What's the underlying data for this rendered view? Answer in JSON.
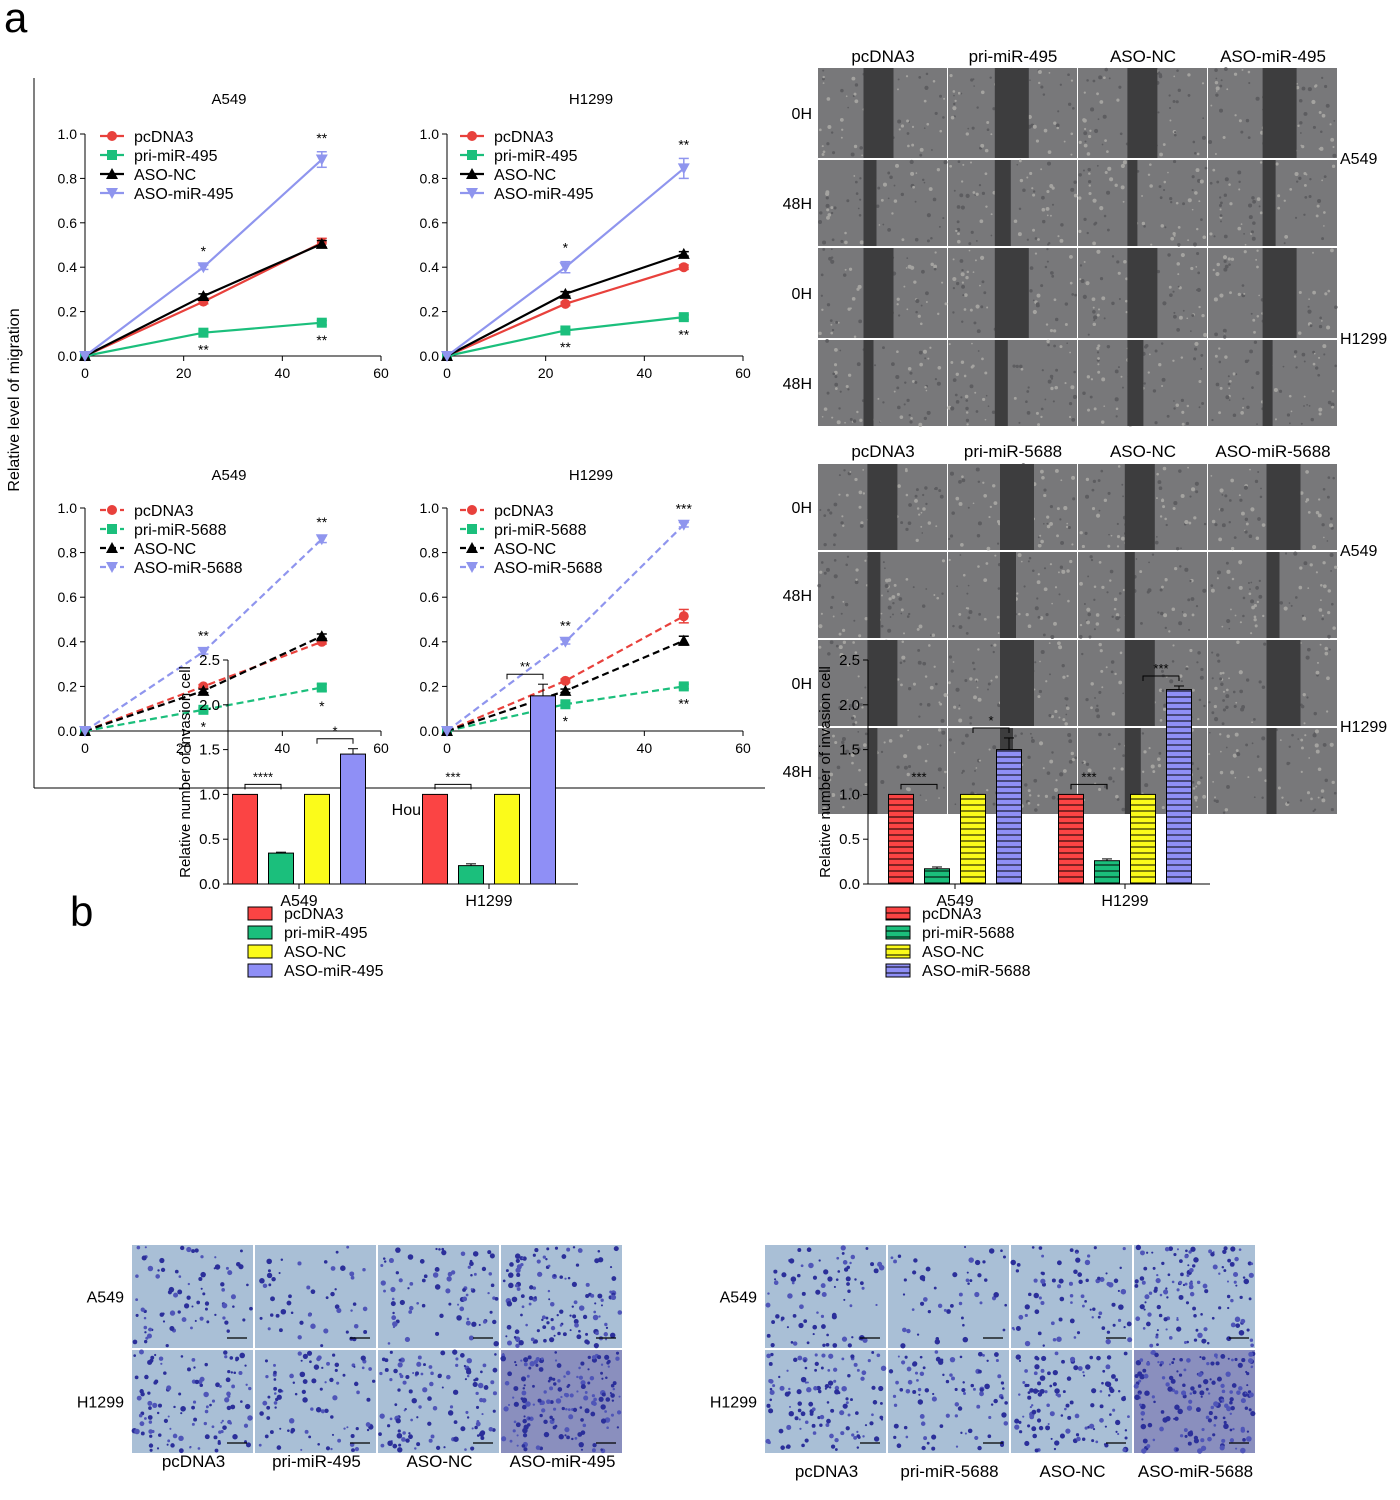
{
  "panels": {
    "a": "a",
    "b": "b"
  },
  "migration": {
    "ylabel": "Relative level of migration",
    "xlabel": "Hour",
    "colors": {
      "pcDNA3": "#e8413c",
      "pri": "#1bbf7c",
      "ASO-NC": "#000000",
      "ASO": "#8f95ee"
    }
  },
  "chart_data": [
    {
      "type": "line",
      "title": "A549",
      "xlim": [
        0,
        60
      ],
      "ylim": [
        0,
        1.0
      ],
      "xticks": [
        "0",
        "20",
        "40",
        "60"
      ],
      "yticks": [
        "0.0",
        "0.2",
        "0.4",
        "0.6",
        "0.8",
        "1.0"
      ],
      "x": [
        0,
        24,
        48
      ],
      "dashed": false,
      "series": [
        {
          "name": "pcDNA3",
          "values": [
            0,
            0.245,
            0.51
          ],
          "err": [
            0,
            0.01,
            0.02
          ],
          "marker": "circle",
          "color": "#e8413c",
          "stars": [
            "",
            "",
            ""
          ]
        },
        {
          "name": "pri-miR-495",
          "values": [
            0,
            0.105,
            0.15
          ],
          "err": [
            0,
            0.008,
            0.01
          ],
          "marker": "square",
          "color": "#1bbf7c",
          "stars": [
            "",
            "**",
            "**"
          ]
        },
        {
          "name": "ASO-NC",
          "values": [
            0,
            0.27,
            0.505
          ],
          "err": [
            0,
            0.01,
            0.015
          ],
          "marker": "triangle",
          "color": "#000000",
          "stars": [
            "",
            "",
            ""
          ]
        },
        {
          "name": "ASO-miR-495",
          "values": [
            0,
            0.4,
            0.885
          ],
          "err": [
            0,
            0.01,
            0.035
          ],
          "marker": "tridown",
          "color": "#8f95ee",
          "stars": [
            "",
            "*",
            "**"
          ]
        }
      ]
    },
    {
      "type": "line",
      "title": "H1299",
      "xlim": [
        0,
        60
      ],
      "ylim": [
        0,
        1.0
      ],
      "xticks": [
        "0",
        "20",
        "40",
        "60"
      ],
      "yticks": [
        "0.0",
        "0.2",
        "0.4",
        "0.6",
        "0.8",
        "1.0"
      ],
      "x": [
        0,
        24,
        48
      ],
      "dashed": false,
      "series": [
        {
          "name": "pcDNA3",
          "values": [
            0,
            0.235,
            0.4
          ],
          "err": [
            0,
            0.008,
            0.01
          ],
          "marker": "circle",
          "color": "#e8413c",
          "stars": [
            "",
            "",
            ""
          ]
        },
        {
          "name": "pri-miR-495",
          "values": [
            0,
            0.115,
            0.175
          ],
          "err": [
            0,
            0.008,
            0.01
          ],
          "marker": "square",
          "color": "#1bbf7c",
          "stars": [
            "",
            "**",
            "**"
          ]
        },
        {
          "name": "ASO-NC",
          "values": [
            0,
            0.28,
            0.46
          ],
          "err": [
            0,
            0.01,
            0.01
          ],
          "marker": "triangle",
          "color": "#000000",
          "stars": [
            "",
            "",
            ""
          ]
        },
        {
          "name": "ASO-miR-495",
          "values": [
            0,
            0.4,
            0.845
          ],
          "err": [
            0,
            0.025,
            0.045
          ],
          "marker": "tridown",
          "color": "#8f95ee",
          "stars": [
            "",
            "*",
            "**"
          ]
        }
      ]
    },
    {
      "type": "line",
      "title": "A549",
      "xlim": [
        0,
        60
      ],
      "ylim": [
        0,
        1.0
      ],
      "xticks": [
        "0",
        "20",
        "40",
        "60"
      ],
      "yticks": [
        "0.0",
        "0.2",
        "0.4",
        "0.6",
        "0.8",
        "1.0"
      ],
      "x": [
        0,
        24,
        48
      ],
      "dashed": true,
      "series": [
        {
          "name": "pcDNA3",
          "values": [
            0,
            0.2,
            0.4
          ],
          "err": [
            0,
            0.008,
            0.01
          ],
          "marker": "circle",
          "color": "#e8413c",
          "stars": [
            "",
            "",
            ""
          ]
        },
        {
          "name": "pri-miR-5688",
          "values": [
            0,
            0.095,
            0.195
          ],
          "err": [
            0,
            0.008,
            0.015
          ],
          "marker": "square",
          "color": "#1bbf7c",
          "stars": [
            "",
            "*",
            "*"
          ]
        },
        {
          "name": "ASO-NC",
          "values": [
            0,
            0.18,
            0.425
          ],
          "err": [
            0,
            0.008,
            0.01
          ],
          "marker": "triangle",
          "color": "#000000",
          "stars": [
            "",
            "",
            ""
          ]
        },
        {
          "name": "ASO-miR-5688",
          "values": [
            0,
            0.355,
            0.86
          ],
          "err": [
            0,
            0.01,
            0.015
          ],
          "marker": "tridown",
          "color": "#8f95ee",
          "stars": [
            "",
            "**",
            "**"
          ]
        }
      ]
    },
    {
      "type": "line",
      "title": "H1299",
      "xlim": [
        0,
        60
      ],
      "ylim": [
        0,
        1.0
      ],
      "xticks": [
        "0",
        "20",
        "40",
        "60"
      ],
      "yticks": [
        "0.0",
        "0.2",
        "0.4",
        "0.6",
        "0.8",
        "1.0"
      ],
      "x": [
        0,
        24,
        48
      ],
      "dashed": true,
      "series": [
        {
          "name": "pcDNA3",
          "values": [
            0,
            0.225,
            0.515
          ],
          "err": [
            0,
            0.008,
            0.03
          ],
          "marker": "circle",
          "color": "#e8413c",
          "stars": [
            "",
            "",
            ""
          ]
        },
        {
          "name": "pri-miR-5688",
          "values": [
            0,
            0.12,
            0.2
          ],
          "err": [
            0,
            0.008,
            0.01
          ],
          "marker": "square",
          "color": "#1bbf7c",
          "stars": [
            "",
            "*",
            "**"
          ]
        },
        {
          "name": "ASO-NC",
          "values": [
            0,
            0.18,
            0.405
          ],
          "err": [
            0,
            0.008,
            0.02
          ],
          "marker": "triangle",
          "color": "#000000",
          "stars": [
            "",
            "",
            ""
          ]
        },
        {
          "name": "ASO-miR-5688",
          "values": [
            0,
            0.4,
            0.925
          ],
          "err": [
            0,
            0.01,
            0.01
          ],
          "marker": "tridown",
          "color": "#8f95ee",
          "stars": [
            "",
            "**",
            "***"
          ]
        }
      ]
    },
    {
      "type": "bar",
      "ylabel": "Relative number of invasion cell",
      "ylim": [
        0,
        2.5
      ],
      "yticks": [
        "0.0",
        "0.5",
        "1.0",
        "1.5",
        "2.0",
        "2.5"
      ],
      "categories": [
        "A549",
        "H1299"
      ],
      "hatched": false,
      "series": [
        {
          "name": "pcDNA3",
          "values": [
            1.0,
            1.0
          ],
          "err": [
            0,
            0
          ],
          "color": "#fb4444"
        },
        {
          "name": "pri-miR-495",
          "values": [
            0.345,
            0.205
          ],
          "err": [
            0.01,
            0.02
          ],
          "color": "#1bbf7c"
        },
        {
          "name": "ASO-NC",
          "values": [
            1.0,
            1.0
          ],
          "err": [
            0,
            0
          ],
          "color": "#fbfb1a"
        },
        {
          "name": "ASO-miR-495",
          "values": [
            1.45,
            2.1
          ],
          "err": [
            0.06,
            0.13
          ],
          "color": "#8f8ff6"
        }
      ],
      "brackets": [
        {
          "cat": 0,
          "from": 0,
          "to": 1,
          "label": "****"
        },
        {
          "cat": 0,
          "from": 2,
          "to": 3,
          "label": "*"
        },
        {
          "cat": 1,
          "from": 0,
          "to": 1,
          "label": "***"
        },
        {
          "cat": 1,
          "from": 2,
          "to": 3,
          "label": "**"
        }
      ]
    },
    {
      "type": "bar",
      "ylabel": "Relative number of invasion cell",
      "ylim": [
        0,
        2.5
      ],
      "yticks": [
        "0.0",
        "0.5",
        "1.0",
        "1.5",
        "2.0",
        "2.5"
      ],
      "categories": [
        "A549",
        "H1299"
      ],
      "hatched": true,
      "series": [
        {
          "name": "pcDNA3",
          "values": [
            1.0,
            1.0
          ],
          "err": [
            0,
            0
          ],
          "color": "#fb4444"
        },
        {
          "name": "pri-miR-5688",
          "values": [
            0.17,
            0.26
          ],
          "err": [
            0.02,
            0.02
          ],
          "color": "#1bbf7c"
        },
        {
          "name": "ASO-NC",
          "values": [
            1.0,
            1.0
          ],
          "err": [
            0,
            0
          ],
          "color": "#fbfb1a"
        },
        {
          "name": "ASO-miR-5688",
          "values": [
            1.5,
            2.17
          ],
          "err": [
            0.13,
            0.04
          ],
          "color": "#8f8ff6"
        }
      ],
      "brackets": [
        {
          "cat": 0,
          "from": 0,
          "to": 1,
          "label": "***"
        },
        {
          "cat": 0,
          "from": 2,
          "to": 3,
          "label": "*"
        },
        {
          "cat": 1,
          "from": 0,
          "to": 1,
          "label": "***"
        },
        {
          "cat": 1,
          "from": 2,
          "to": 3,
          "label": "***"
        }
      ]
    }
  ],
  "scratch_grids": [
    {
      "columns": [
        "pcDNA3",
        "pri-miR-495",
        "ASO-NC",
        "ASO-miR-495"
      ],
      "rows": [
        "0H",
        "48H",
        "0H",
        "48H"
      ],
      "cells": [
        "A549",
        "H1299"
      ]
    },
    {
      "columns": [
        "pcDNA3",
        "pri-miR-5688",
        "ASO-NC",
        "ASO-miR-5688"
      ],
      "rows": [
        "0H",
        "48H",
        "0H",
        "48H"
      ],
      "cells": [
        "A549",
        "H1299"
      ]
    }
  ],
  "invasion_grids": [
    {
      "columns": [
        "pcDNA3",
        "pri-miR-495",
        "ASO-NC",
        "ASO-miR-495"
      ],
      "rows": [
        "A549",
        "H1299"
      ]
    },
    {
      "columns": [
        "pcDNA3",
        "pri-miR-5688",
        "ASO-NC",
        "ASO-miR-5688"
      ],
      "rows": [
        "A549",
        "H1299"
      ]
    }
  ]
}
